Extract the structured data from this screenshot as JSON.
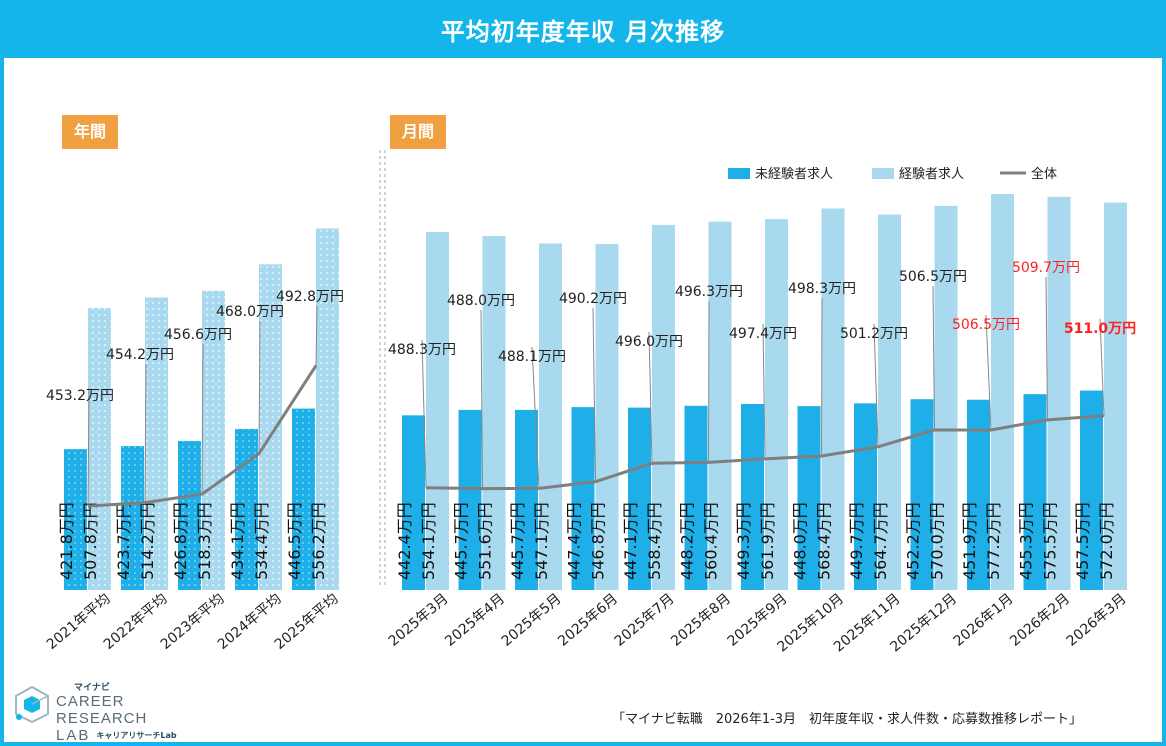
{
  "title": "平均初年度年収 月次推移",
  "sections": {
    "annual": "年間",
    "monthly": "月間"
  },
  "legend": {
    "inexperienced": "未経験者求人",
    "experienced": "経験者求人",
    "overall": "全体"
  },
  "colors": {
    "inexperienced": "#1eaee8",
    "experienced": "#a8d9ee",
    "overall": "#7f7f7f",
    "highlight": "#ff2020",
    "header": "#13b5ea",
    "label": "#f0a040"
  },
  "logo": {
    "top": "マイナビ",
    "main": "CAREER RESEARCH",
    "lab": "LAB",
    "sub": "キャリアリサーチLab"
  },
  "source": "「マイナビ転職　2026年1-3月　初年度年収・求人件数・応募数推移レポート」",
  "chart_data": [
    {
      "type": "bar",
      "categories": [
        "2021年平均",
        "2022年平均",
        "2023年平均",
        "2024年平均",
        "2025年平均"
      ],
      "series": [
        {
          "name": "未経験者求人",
          "values": [
            421.8,
            423.7,
            426.8,
            434.1,
            446.5
          ],
          "labels": [
            "421.8万円",
            "423.7万円",
            "426.8万円",
            "434.1万円",
            "446.5万円"
          ]
        },
        {
          "name": "経験者求人",
          "values": [
            507.8,
            514.2,
            518.3,
            534.4,
            556.2
          ],
          "labels": [
            "507.8万円",
            "514.2万円",
            "518.3万円",
            "534.4万円",
            "556.2万円"
          ]
        },
        {
          "name": "全体",
          "values": [
            453.2,
            454.2,
            456.6,
            468.0,
            492.8
          ],
          "labels": [
            "453.2万円",
            "454.2万円",
            "456.6万円",
            "468.0万円",
            "492.8万円"
          ]
        }
      ],
      "pattern": "dotted"
    },
    {
      "type": "bar",
      "categories": [
        "2025年3月",
        "2025年4月",
        "2025年5月",
        "2025年6月",
        "2025年7月",
        "2025年8月",
        "2025年9月",
        "2025年10月",
        "2025年11月",
        "2025年12月",
        "2026年1月",
        "2026年2月",
        "2026年3月"
      ],
      "series": [
        {
          "name": "未経験者求人",
          "values": [
            442.4,
            445.7,
            445.7,
            447.4,
            447.1,
            448.2,
            449.3,
            448.0,
            449.7,
            452.2,
            451.9,
            455.3,
            457.5
          ],
          "labels": [
            "442.4万円",
            "445.7万円",
            "445.7万円",
            "447.4万円",
            "447.1万円",
            "448.2万円",
            "449.3万円",
            "448.0万円",
            "449.7万円",
            "452.2万円",
            "451.9万円",
            "455.3万円",
            "457.5万円"
          ]
        },
        {
          "name": "経験者求人",
          "values": [
            554.1,
            551.6,
            547.1,
            546.8,
            558.4,
            560.4,
            561.9,
            568.4,
            564.7,
            570.0,
            577.2,
            575.5,
            572.0
          ],
          "labels": [
            "554.1万円",
            "551.6万円",
            "547.1万円",
            "546.8万円",
            "558.4万円",
            "560.4万円",
            "561.9万円",
            "568.4万円",
            "564.7万円",
            "570.0万円",
            "577.2万円",
            "575.5万円",
            "572.0万円"
          ]
        },
        {
          "name": "全体",
          "values": [
            488.3,
            488.0,
            488.1,
            490.2,
            496.0,
            496.3,
            497.4,
            498.3,
            501.2,
            506.5,
            506.5,
            509.7,
            511.0
          ],
          "labels": [
            "488.3万円",
            "488.0万円",
            "488.1万円",
            "490.2万円",
            "496.0万円",
            "496.3万円",
            "497.4万円",
            "498.3万円",
            "501.2万円",
            "506.5万円",
            "506.5万円",
            "509.7万円",
            "511.0万円"
          ]
        }
      ],
      "highlight_overall_labels": [
        "506.5万円",
        "509.7万円",
        "511.0万円"
      ]
    }
  ]
}
